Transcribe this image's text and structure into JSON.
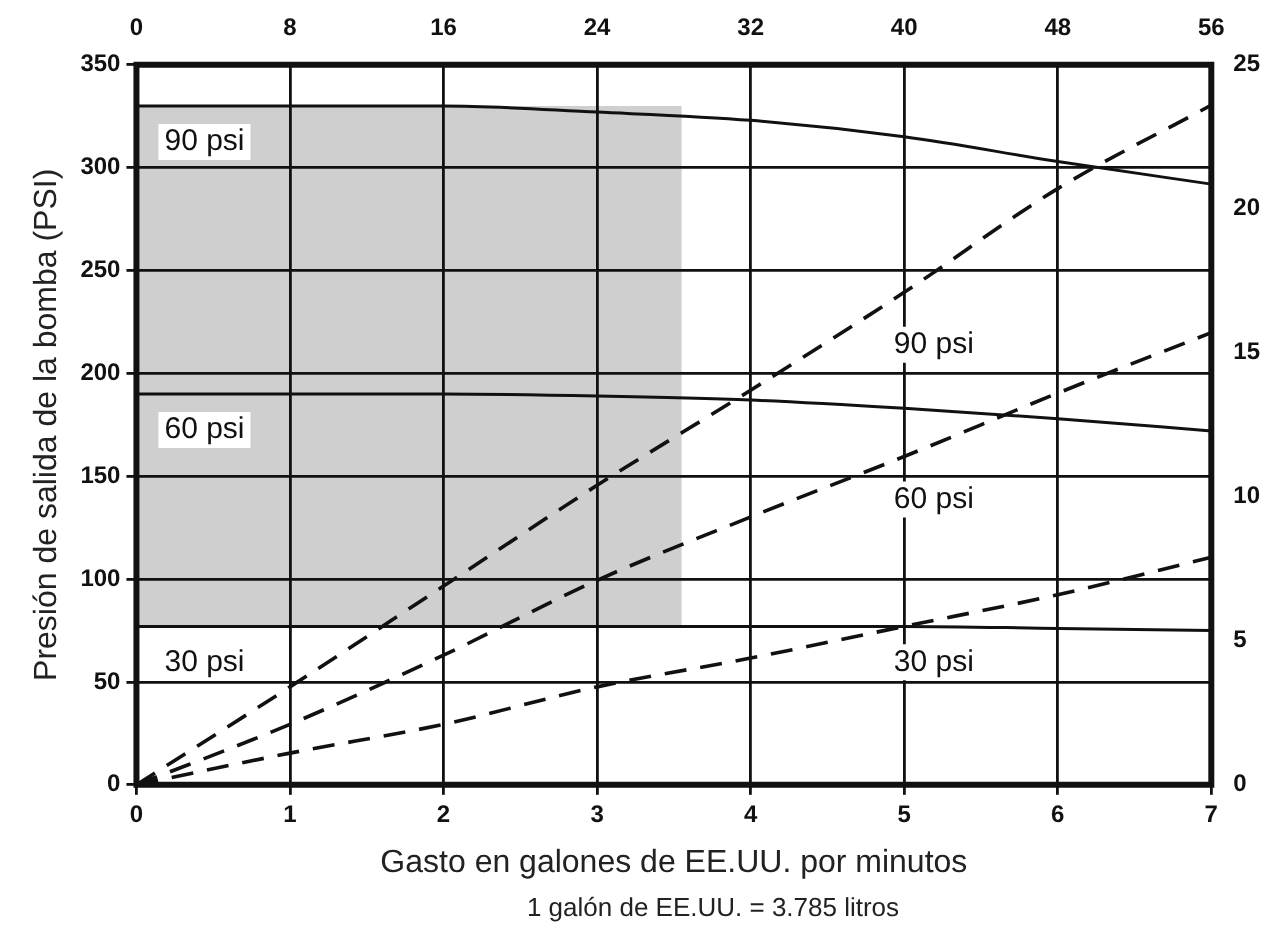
{
  "chart_data": {
    "type": "line",
    "xlabel": "Gasto en galones de EE.UU. por minutos",
    "ylabel": "Presión de salida de la bomba (PSI)",
    "annotations": [
      "1 galón de EE.UU. = 3.785 litros"
    ],
    "x": [
      0,
      1,
      2,
      3,
      4,
      5,
      6,
      7
    ],
    "xlim": [
      0,
      7
    ],
    "xticks": [
      0,
      1,
      2,
      3,
      4,
      5,
      6,
      7
    ],
    "x2lim": [
      0,
      56
    ],
    "x2ticks": [
      0,
      8,
      16,
      24,
      32,
      40,
      48,
      56
    ],
    "ylim": [
      0,
      350
    ],
    "yticks": [
      0,
      50,
      100,
      150,
      200,
      250,
      300,
      350
    ],
    "y2lim": [
      0,
      25
    ],
    "y2ticks": [
      0,
      5,
      10,
      15,
      20,
      25
    ],
    "grid": true,
    "legend": false,
    "marker": "none",
    "bands": [
      {
        "axis": "x",
        "from": 0,
        "to": 3.55,
        "color": "#cfcfcf"
      }
    ],
    "series": [
      {
        "name": "90 psi",
        "color": "#111111",
        "line_style": "solid",
        "values": [
          330,
          330,
          330,
          327,
          323,
          315,
          303,
          292
        ]
      },
      {
        "name": "60 psi",
        "color": "#111111",
        "line_style": "solid",
        "values": [
          190,
          190,
          190,
          189,
          187,
          183,
          178,
          172
        ]
      },
      {
        "name": "30 psi",
        "color": "#111111",
        "line_style": "solid",
        "values": [
          77,
          77,
          77,
          77,
          77,
          77,
          76,
          75
        ]
      },
      {
        "name": "90 psi",
        "color": "#111111",
        "line_style": "dashed",
        "axis": "y2",
        "values": [
          0,
          3.4,
          6.9,
          10.4,
          13.7,
          17.1,
          20.7,
          23.6
        ]
      },
      {
        "name": "60 psi",
        "color": "#111111",
        "line_style": "dashed",
        "axis": "y2",
        "values": [
          0,
          2.1,
          4.5,
          7.1,
          9.3,
          11.4,
          13.6,
          15.7
        ]
      },
      {
        "name": "30 psi",
        "color": "#111111",
        "line_style": "dashed",
        "axis": "y2",
        "values": [
          0,
          1.1,
          2.1,
          3.4,
          4.4,
          5.5,
          6.6,
          7.9
        ]
      }
    ]
  }
}
